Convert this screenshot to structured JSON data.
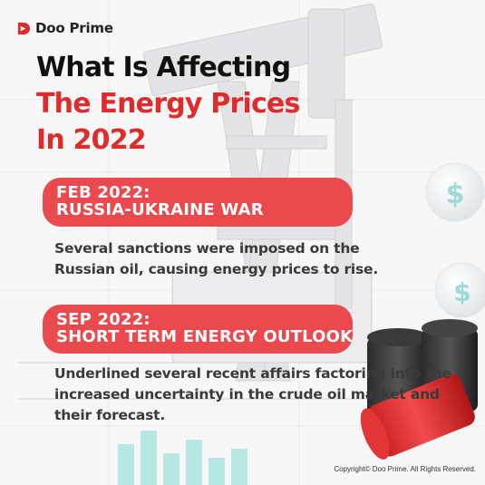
{
  "brand": {
    "name": "Doo Prime",
    "color": "#e02b2b",
    "icon": "doo-prime-logo-icon"
  },
  "title": {
    "line1": "What Is Affecting",
    "line2": "The Energy Prices",
    "line3": "In 2022"
  },
  "events": [
    {
      "date": "FEB 2022:",
      "headline": "RUSSIA-UKRAINE WAR",
      "description": "Several sanctions were imposed on the Russian oil, causing energy prices to rise."
    },
    {
      "date": "SEP 2022:",
      "headline": "SHORT TERM ENERGY OUTLOOK",
      "description": "Underlined several recent affairs factoring into the increased uncertainty in the crude oil market and their forecast."
    }
  ],
  "footer": {
    "copyright": "Copyright© Doo Prime. All Rights Reserved."
  },
  "colors": {
    "accent": "#e02b2b",
    "pill": "#ea4a4d",
    "text": "#3a3a3a",
    "background": "#f7f7f8"
  }
}
